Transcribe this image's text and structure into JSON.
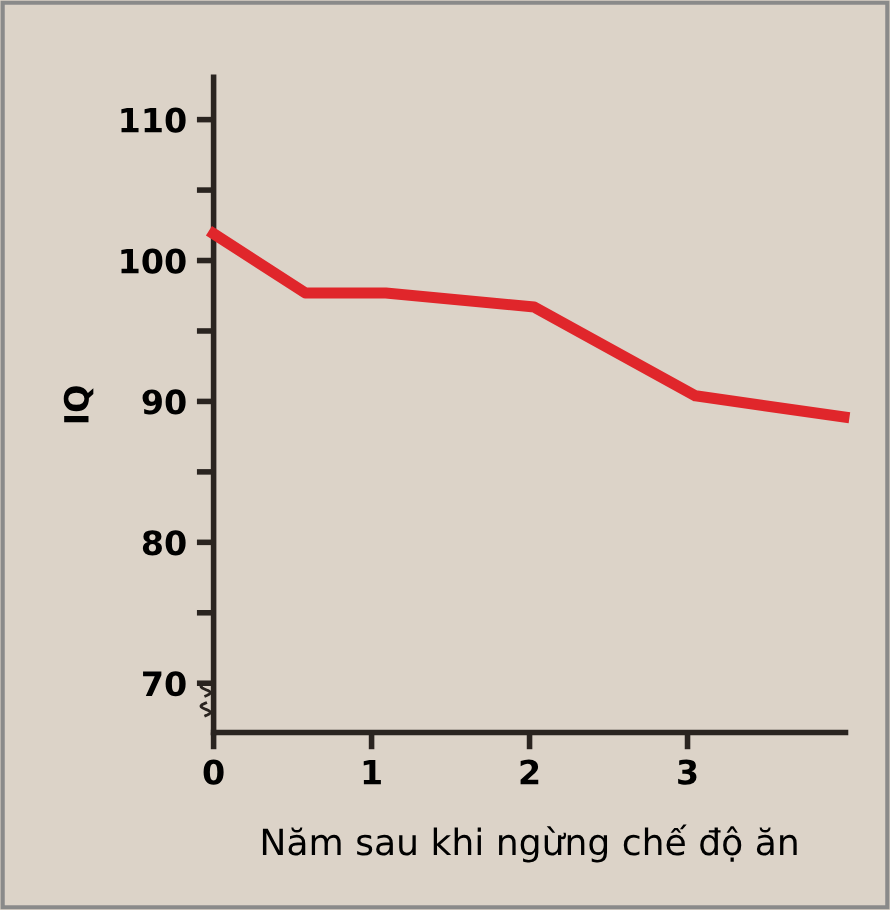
{
  "chart_data": {
    "type": "line",
    "xlabel": "Năm sau khi ngừng chế độ ăn",
    "ylabel": "IQ",
    "x": [
      0,
      0.58,
      1.09,
      2.03,
      3.05,
      3.99
    ],
    "series": [
      {
        "color": "#e0262b",
        "values": [
          101.9,
          97.7,
          97.7,
          96.7,
          90.4,
          88.9
        ]
      }
    ],
    "xlim": [
      0,
      4
    ],
    "ylim": [
      66.5,
      113
    ],
    "xticks": [
      0,
      1,
      2,
      3
    ],
    "yticks": [
      70,
      {
        "value": 75,
        "label": null
      },
      80,
      {
        "value": 85,
        "label": null
      },
      90,
      {
        "value": 95,
        "label": null
      },
      100,
      {
        "value": 105,
        "label": null
      },
      110
    ],
    "grid": false,
    "legend": false,
    "marker": "none",
    "line_style": "solid"
  }
}
